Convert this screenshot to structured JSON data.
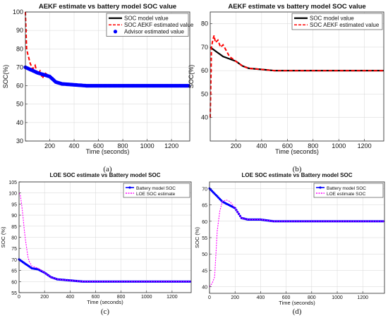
{
  "chart_data": [
    {
      "id": "a",
      "type": "line",
      "caption": "(a)",
      "title": "AEKF estimate vs battery model SOC value",
      "xlabel": "Time (seconds)",
      "ylabel": "SOC(%)",
      "xlim": [
        0,
        1350
      ],
      "ylim": [
        30,
        100
      ],
      "xticks": [
        200,
        400,
        600,
        800,
        1000,
        1200
      ],
      "yticks": [
        30,
        40,
        50,
        60,
        70,
        80,
        90,
        100
      ],
      "grid": true,
      "legend_position": "top-right",
      "series": [
        {
          "name": "SOC model value",
          "color": "#000000",
          "style": "solid",
          "x": [
            0,
            50,
            100,
            150,
            200,
            250,
            300,
            400,
            500,
            600,
            700,
            800,
            900,
            1000,
            1100,
            1200,
            1300,
            1350
          ],
          "y": [
            70,
            68.5,
            67,
            66,
            65,
            62,
            61,
            60.5,
            60,
            60,
            60,
            60,
            60,
            60,
            60,
            60,
            60,
            60
          ]
        },
        {
          "name": "SOC AEKF estimated value",
          "color": "#ff0000",
          "style": "dashed",
          "x": [
            0,
            10,
            20,
            40,
            60,
            80,
            100,
            120,
            140,
            160,
            180,
            200,
            250,
            300,
            400,
            500,
            600,
            700,
            800,
            900,
            1000,
            1100,
            1200,
            1300,
            1350
          ],
          "y": [
            100,
            80,
            77,
            72,
            69,
            71,
            66,
            68,
            64,
            67,
            66,
            65,
            62,
            61,
            60.5,
            60,
            60,
            60,
            60,
            60,
            60,
            60,
            60,
            60,
            60
          ]
        },
        {
          "name": "Advisor estimated value",
          "color": "#0000ff",
          "style": "markers",
          "x": [
            0,
            50,
            100,
            150,
            200,
            250,
            300,
            400,
            500,
            600,
            700,
            800,
            900,
            1000,
            1100,
            1200,
            1300,
            1350
          ],
          "y": [
            70,
            68.5,
            67,
            66,
            65,
            62,
            61,
            60.5,
            60,
            60,
            60,
            60,
            60,
            60,
            60,
            60,
            60,
            60
          ]
        }
      ]
    },
    {
      "id": "b",
      "type": "line",
      "caption": "(b)",
      "title": "AEKF estimate vs battery model  SOC value",
      "xlabel": "Time (seconds)",
      "ylabel": "SOC(%)",
      "xlim": [
        0,
        1350
      ],
      "ylim": [
        30,
        85
      ],
      "xticks": [
        200,
        400,
        600,
        800,
        1000,
        1200
      ],
      "yticks": [
        40,
        50,
        60,
        70,
        80
      ],
      "grid": true,
      "legend_position": "top-right",
      "series": [
        {
          "name": "SOC model value",
          "color": "#000000",
          "style": "solid",
          "x": [
            0,
            50,
            100,
            150,
            200,
            250,
            300,
            400,
            500,
            600,
            700,
            800,
            900,
            1000,
            1100,
            1200,
            1300,
            1350
          ],
          "y": [
            70,
            68,
            66,
            65,
            64,
            62,
            61,
            60.5,
            60,
            60,
            60,
            60,
            60,
            60,
            60,
            60,
            60,
            60
          ]
        },
        {
          "name": "SOC AEKF estimated value",
          "color": "#ff0000",
          "style": "dashed",
          "x": [
            0,
            5,
            10,
            20,
            30,
            40,
            60,
            80,
            100,
            120,
            150,
            200,
            250,
            300,
            400,
            500,
            600,
            700,
            800,
            900,
            1000,
            1100,
            1200,
            1300,
            1350
          ],
          "y": [
            40,
            55,
            70,
            73,
            75,
            72,
            73,
            70,
            71,
            69,
            66,
            64,
            62,
            61,
            60.5,
            60,
            60,
            60,
            60,
            60,
            60,
            60,
            60,
            60,
            60
          ]
        }
      ]
    },
    {
      "id": "c",
      "type": "line",
      "caption": "(c)",
      "title": "LOE  SOC  estimate vs  Battery model SOC",
      "xlabel": "Time  (seconds)",
      "ylabel": "SOC (%)",
      "xlim": [
        0,
        1350
      ],
      "ylim": [
        55,
        105
      ],
      "xticks": [
        0,
        200,
        400,
        600,
        800,
        1000,
        1200
      ],
      "yticks": [
        55,
        60,
        65,
        70,
        75,
        80,
        85,
        90,
        95,
        100,
        105
      ],
      "grid": true,
      "legend_position": "top-right",
      "series": [
        {
          "name": "Battery model SOC",
          "color": "#0000ff",
          "style": "line-markers",
          "x": [
            0,
            50,
            100,
            150,
            200,
            250,
            300,
            400,
            500,
            600,
            700,
            800,
            900,
            1000,
            1100,
            1200,
            1300,
            1350
          ],
          "y": [
            70,
            68,
            66,
            65.5,
            64,
            62,
            61,
            60.5,
            60,
            60,
            60,
            60,
            60,
            60,
            60,
            60,
            60,
            60
          ]
        },
        {
          "name": "LOE  SOC  estimate",
          "color": "#ff00ff",
          "style": "dashed",
          "x": [
            0,
            10,
            20,
            30,
            40,
            50,
            60,
            70,
            80,
            100,
            150,
            200,
            250,
            300,
            400,
            500,
            600,
            700,
            800,
            900,
            1000,
            1100,
            1200,
            1300,
            1350
          ],
          "y": [
            100,
            99,
            95,
            90,
            84,
            79,
            75,
            71,
            69,
            67,
            66,
            64,
            62,
            61,
            60.5,
            60,
            60,
            60,
            60,
            60,
            60,
            60,
            60,
            60,
            60
          ]
        }
      ]
    },
    {
      "id": "d",
      "type": "line",
      "caption": "(d)",
      "title": "LOE  SOC  estimate vs Battery model SOC",
      "xlabel": "Time  (seconds)",
      "ylabel": "SOC (%)",
      "xlim": [
        0,
        1370
      ],
      "ylim": [
        38,
        72
      ],
      "xticks": [
        0,
        200,
        400,
        600,
        800,
        1000,
        1200
      ],
      "yticks": [
        40,
        45,
        50,
        55,
        60,
        65,
        70
      ],
      "grid": true,
      "legend_position": "top-right",
      "series": [
        {
          "name": "Battery model SOC",
          "color": "#0000ff",
          "style": "line-markers",
          "x": [
            0,
            50,
            100,
            150,
            200,
            250,
            300,
            400,
            500,
            600,
            700,
            800,
            900,
            1000,
            1100,
            1200,
            1300,
            1370
          ],
          "y": [
            70,
            68,
            66,
            65,
            64,
            61,
            60.5,
            60.5,
            60,
            60,
            60,
            60,
            60,
            60,
            60,
            60,
            60,
            60
          ]
        },
        {
          "name": "LOE  estimate SOC",
          "color": "#ff00ff",
          "style": "dashed",
          "x": [
            0,
            20,
            40,
            50,
            60,
            80,
            100,
            130,
            160,
            200,
            250,
            300,
            400,
            500,
            600,
            700,
            800,
            900,
            1000,
            1100,
            1200,
            1300,
            1370
          ],
          "y": [
            40,
            41,
            43,
            50,
            57,
            63,
            66,
            66.5,
            66,
            64,
            61,
            60.5,
            60.5,
            60,
            60,
            60,
            60,
            60,
            60,
            60,
            60,
            60,
            60
          ]
        }
      ]
    }
  ]
}
